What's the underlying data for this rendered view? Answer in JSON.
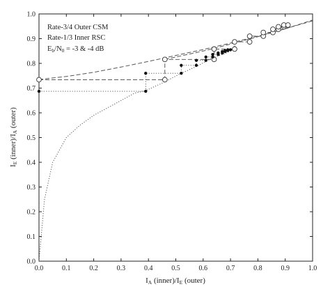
{
  "chart_data": {
    "type": "line",
    "title": "",
    "xlabel": {
      "main": "I",
      "sub": "A",
      "rest": " (inner)/I",
      "sub2": "E",
      "rest2": " (outer)"
    },
    "ylabel": {
      "main": "I",
      "sub": "E",
      "rest": " (inner)/I",
      "sub2": "A",
      "rest2": " (outer)"
    },
    "xlim": [
      0,
      1
    ],
    "ylim": [
      0,
      1
    ],
    "xticks": [
      "0.0",
      "0.1",
      "0.2",
      "0.3",
      "0.4",
      "0.5",
      "0.6",
      "0.7",
      "0.8",
      "0.9",
      "1.0"
    ],
    "yticks": [
      "0.0",
      "0.1",
      "0.2",
      "0.3",
      "0.4",
      "0.5",
      "0.6",
      "0.7",
      "0.8",
      "0.9",
      "1.0"
    ],
    "grid": false,
    "legend": {
      "placement": "top-left",
      "lines": [
        {
          "text": "Rate-3/4 Outer CSM"
        },
        {
          "text": "Rate-1/3 Inner RSC"
        },
        {
          "prefix": "E",
          "sub": "b",
          "mid": "/N",
          "sub2": "0",
          "suffix": " = -3 & -4 dB"
        }
      ]
    },
    "series": [
      {
        "style": "dashed",
        "points": [
          [
            0.0,
            0.735
          ],
          [
            0.1,
            0.747
          ],
          [
            0.2,
            0.764
          ],
          [
            0.3,
            0.785
          ],
          [
            0.4,
            0.808
          ],
          [
            0.5,
            0.832
          ],
          [
            0.6,
            0.856
          ],
          [
            0.7,
            0.882
          ],
          [
            0.8,
            0.91
          ],
          [
            0.9,
            0.94
          ],
          [
            1.0,
            0.972
          ]
        ]
      },
      {
        "style": "dashed",
        "points": [
          [
            0.46,
            0.816
          ],
          [
            0.6,
            0.85
          ],
          [
            0.7,
            0.878
          ],
          [
            0.8,
            0.908
          ],
          [
            0.9,
            0.94
          ],
          [
            1.0,
            0.975
          ]
        ]
      },
      {
        "style": "dotted",
        "points": [
          [
            0.0,
            0.0
          ],
          [
            0.02,
            0.25
          ],
          [
            0.05,
            0.4
          ],
          [
            0.1,
            0.5
          ],
          [
            0.15,
            0.55
          ],
          [
            0.2,
            0.59
          ],
          [
            0.25,
            0.62
          ],
          [
            0.3,
            0.65
          ],
          [
            0.35,
            0.68
          ],
          [
            0.39,
            0.69
          ],
          [
            0.45,
            0.72
          ],
          [
            0.52,
            0.76
          ],
          [
            0.58,
            0.79
          ],
          [
            0.63,
            0.82
          ],
          [
            0.68,
            0.84
          ],
          [
            0.72,
            0.86
          ]
        ]
      }
    ],
    "trajectories": [
      {
        "style": "dashed",
        "marker": "open-circle",
        "points": [
          [
            0.0,
            0.734
          ],
          [
            0.46,
            0.734
          ],
          [
            0.46,
            0.816
          ],
          [
            0.64,
            0.816
          ],
          [
            0.64,
            0.858
          ],
          [
            0.715,
            0.858
          ],
          [
            0.715,
            0.887
          ],
          [
            0.77,
            0.887
          ],
          [
            0.77,
            0.91
          ],
          [
            0.82,
            0.91
          ],
          [
            0.82,
            0.925
          ],
          [
            0.855,
            0.925
          ],
          [
            0.855,
            0.938
          ],
          [
            0.875,
            0.938
          ],
          [
            0.875,
            0.948
          ],
          [
            0.895,
            0.948
          ],
          [
            0.895,
            0.955
          ],
          [
            0.91,
            0.955
          ]
        ]
      },
      {
        "style": "dotted",
        "marker": "filled-dot",
        "points": [
          [
            0.0,
            0.687
          ],
          [
            0.39,
            0.687
          ],
          [
            0.39,
            0.76
          ],
          [
            0.52,
            0.76
          ],
          [
            0.52,
            0.792
          ],
          [
            0.575,
            0.792
          ],
          [
            0.575,
            0.812
          ],
          [
            0.61,
            0.812
          ],
          [
            0.61,
            0.826
          ],
          [
            0.635,
            0.826
          ],
          [
            0.635,
            0.836
          ],
          [
            0.655,
            0.836
          ],
          [
            0.655,
            0.842
          ],
          [
            0.67,
            0.842
          ],
          [
            0.67,
            0.848
          ],
          [
            0.68,
            0.848
          ],
          [
            0.68,
            0.852
          ],
          [
            0.69,
            0.852
          ],
          [
            0.69,
            0.855
          ],
          [
            0.7,
            0.855
          ]
        ]
      }
    ]
  }
}
